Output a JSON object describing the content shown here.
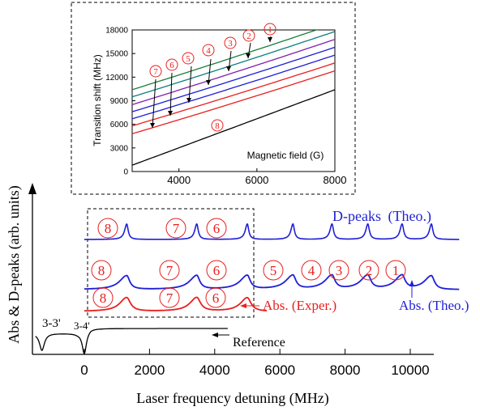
{
  "colors": {
    "blue": "#1f1fd6",
    "red": "#e8201e",
    "black": "#000000",
    "green": "#1a7f3a",
    "teal": "#0e7f80",
    "purple": "#8020b0"
  },
  "chart_data": [
    {
      "type": "line",
      "title": "",
      "xlabel": "Laser frequency detuning (MHz)",
      "ylabel": "Abs & D-peaks (arb. units)",
      "xlim": [
        -1500,
        11600
      ],
      "xticks": [
        0,
        2000,
        4000,
        6000,
        8000,
        10000
      ],
      "tick_labels": [
        "0",
        "2000",
        "4000",
        "6000",
        "8000",
        "10000"
      ],
      "series": [
        {
          "name": "D-peaks (Theo.)",
          "color": "blue",
          "peaks": [
            1300,
            3450,
            5000,
            6400,
            7600,
            8700,
            9750,
            10650
          ],
          "x_range": [
            0,
            11500
          ]
        },
        {
          "name": "Abs. (Theo.)",
          "color": "blue",
          "peaks": [
            1300,
            3450,
            5000,
            6400,
            7600,
            8700,
            9750,
            10650
          ],
          "x_range": [
            0,
            11500
          ]
        },
        {
          "name": "Abs. (Exper.)",
          "color": "red",
          "peaks": [
            1300,
            3450,
            5000
          ],
          "x_range": [
            0,
            5600
          ]
        },
        {
          "name": "Reference",
          "color": "black",
          "dips": [
            -1300,
            0
          ],
          "x_range": [
            -1500,
            4400
          ]
        }
      ],
      "annotations": {
        "peak_numbers_top": [
          "8",
          "7",
          "6"
        ],
        "peak_numbers_mid_left": [
          "8",
          "7",
          "6"
        ],
        "peak_numbers_mid_right": [
          "5",
          "4",
          "3",
          "2",
          "1"
        ],
        "peak_numbers_red": [
          "8",
          "7",
          "6"
        ],
        "label_d_peaks": "D-peaks",
        "label_theo_paren": "(Theo.)",
        "label_abs_theo": "Abs. (Theo.)",
        "label_abs_exper": "Abs. (Exper.)",
        "label_reference": "Reference",
        "label_33": "3-3'",
        "label_34": "3-4'"
      }
    },
    {
      "type": "line",
      "title": "",
      "xlabel": "Magnetic field (G)",
      "ylabel": "Transition shift (MHz)",
      "xlim": [
        2800,
        8000
      ],
      "ylim": [
        0,
        18000
      ],
      "xticks": [
        4000,
        6000,
        8000
      ],
      "xtick_labels": [
        "4000",
        "6000",
        "8000"
      ],
      "yticks": [
        0,
        3000,
        6000,
        9000,
        12000,
        15000,
        18000
      ],
      "ytick_labels": [
        "0",
        "3000",
        "6000",
        "9000",
        "12000",
        "15000",
        "18000"
      ],
      "series": [
        {
          "color": "black",
          "y_at_2800": 800,
          "y_at_8000": 10400
        },
        {
          "color": "red",
          "y_at_2800": 4800,
          "y_at_8000": 12800
        },
        {
          "color": "red",
          "y_at_2800": 5800,
          "y_at_8000": 13800
        },
        {
          "color": "blue",
          "y_at_2800": 6700,
          "y_at_8000": 14800
        },
        {
          "color": "blue",
          "y_at_2800": 7600,
          "y_at_8000": 15800
        },
        {
          "color": "purple",
          "y_at_2800": 8500,
          "y_at_8000": 16800
        },
        {
          "color": "teal",
          "y_at_2800": 9500,
          "y_at_8000": 17800
        },
        {
          "color": "green",
          "y_at_2800": 10400,
          "y_at_8000": 18800
        }
      ],
      "circle_labels": [
        "7",
        "6",
        "5",
        "4",
        "3",
        "2",
        "1",
        "8"
      ]
    }
  ]
}
